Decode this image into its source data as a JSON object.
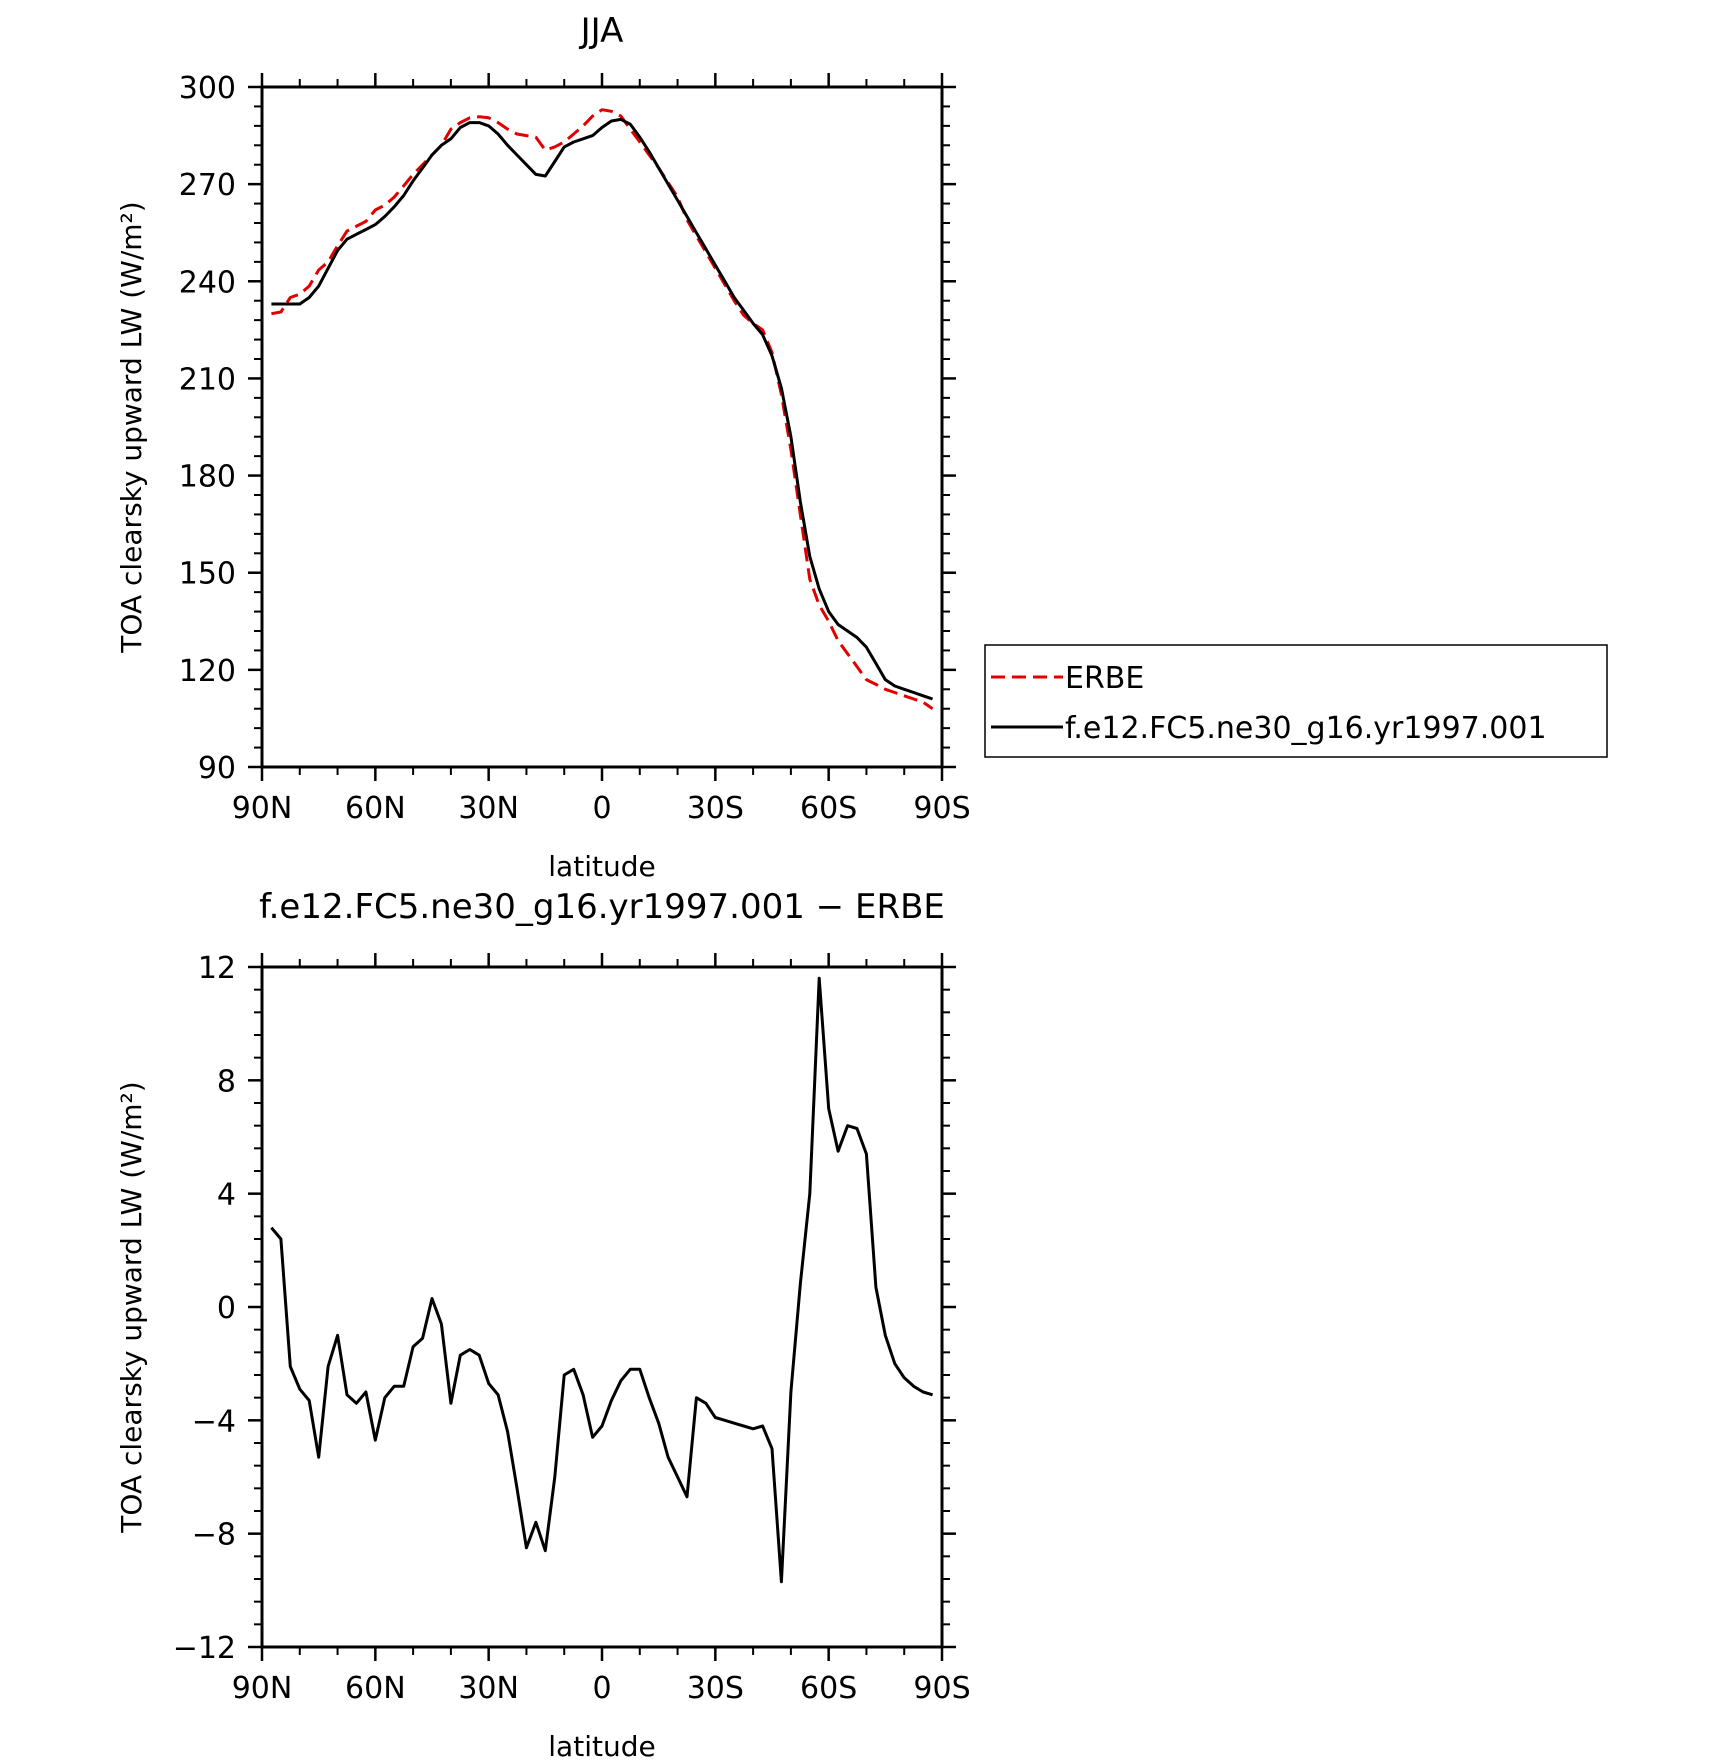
{
  "chart_data": [
    {
      "type": "line",
      "title": "JJA",
      "xlabel": "latitude",
      "ylabel": "TOA clearsky upward LW (W/m²)",
      "xlim": [
        90,
        -90
      ],
      "ylim": [
        90,
        300
      ],
      "x_ticks": [
        90,
        60,
        30,
        0,
        -30,
        -60,
        -90
      ],
      "x_tick_labels": [
        "90N",
        "60N",
        "30N",
        "0",
        "30S",
        "60S",
        "90S"
      ],
      "y_ticks": [
        90,
        120,
        150,
        180,
        210,
        240,
        270,
        300
      ],
      "y_tick_labels": [
        "90",
        "120",
        "150",
        "180",
        "210",
        "240",
        "270",
        "300"
      ],
      "grid": false,
      "legend_placement": "outside-right",
      "series": [
        {
          "name": "ERBE",
          "color": "#e00000",
          "dash": "dashed",
          "x": [
            87.5,
            85,
            82.5,
            80,
            77.5,
            75,
            72.5,
            70,
            67.5,
            65,
            62.5,
            60,
            57.5,
            55,
            52.5,
            50,
            47.5,
            45,
            42.5,
            40,
            37.5,
            35,
            32.5,
            30,
            27.5,
            25,
            22.5,
            20,
            17.5,
            15,
            12.5,
            10,
            7.5,
            5,
            2.5,
            0,
            -2.5,
            -5,
            -7.5,
            -10,
            -12.5,
            -15,
            -17.5,
            -20,
            -22.5,
            -25,
            -27.5,
            -30,
            -32.5,
            -35,
            -37.5,
            -40,
            -42.5,
            -45,
            -47.5,
            -50,
            -52.5,
            -55,
            -57.5,
            -60,
            -62.5,
            -65,
            -67.5,
            -70,
            -72.5,
            -75,
            -77.5,
            -80,
            -82.5,
            -85,
            -87.5
          ],
          "values": [
            230,
            230.5,
            235,
            236,
            238.5,
            243.5,
            246,
            251,
            255.5,
            257,
            258.5,
            262,
            263.5,
            266,
            269.5,
            273,
            276,
            279,
            282,
            287,
            289,
            290.5,
            290.8,
            290.5,
            289,
            287,
            285.5,
            285,
            284.5,
            280.5,
            281.5,
            283,
            285.5,
            288,
            291,
            293,
            292.5,
            291,
            287,
            283,
            279,
            275,
            270.5,
            266,
            259,
            254,
            249,
            244,
            239,
            234,
            229.5,
            227,
            225,
            218,
            205,
            188,
            168,
            148,
            140,
            135,
            129,
            125,
            121,
            117,
            115.5,
            114,
            113,
            112,
            111,
            110,
            108
          ]
        },
        {
          "name": "f.e12.FC5.ne30_g16.yr1997.001",
          "color": "#000000",
          "dash": "solid",
          "x": [
            87.5,
            85,
            82.5,
            80,
            77.5,
            75,
            72.5,
            70,
            67.5,
            65,
            62.5,
            60,
            57.5,
            55,
            52.5,
            50,
            47.5,
            45,
            42.5,
            40,
            37.5,
            35,
            32.5,
            30,
            27.5,
            25,
            22.5,
            20,
            17.5,
            15,
            12.5,
            10,
            7.5,
            5,
            2.5,
            0,
            -2.5,
            -5,
            -7.5,
            -10,
            -12.5,
            -15,
            -17.5,
            -20,
            -22.5,
            -25,
            -27.5,
            -30,
            -32.5,
            -35,
            -37.5,
            -40,
            -42.5,
            -45,
            -47.5,
            -50,
            -52.5,
            -55,
            -57.5,
            -60,
            -62.5,
            -65,
            -67.5,
            -70,
            -72.5,
            -75,
            -77.5,
            -80,
            -82.5,
            -85,
            -87.5
          ],
          "values": [
            233,
            233,
            233,
            233,
            235,
            238.5,
            244,
            249.5,
            253,
            254.5,
            256,
            257.5,
            260,
            263,
            266.5,
            271,
            275,
            279,
            282,
            284,
            287.5,
            289,
            289,
            288,
            285.5,
            282,
            279,
            276,
            273,
            272.5,
            277,
            281.5,
            283,
            284,
            285,
            287.5,
            289.5,
            290,
            288.5,
            284.5,
            280,
            275,
            270,
            265,
            260,
            255,
            250,
            245,
            240,
            235,
            231,
            227,
            223.5,
            217,
            207,
            192,
            172,
            155,
            145,
            138,
            134,
            132,
            130,
            127,
            122,
            117,
            115,
            114,
            113,
            112,
            111
          ]
        }
      ]
    },
    {
      "type": "line",
      "title": "f.e12.FC5.ne30_g16.yr1997.001 − ERBE",
      "xlabel": "latitude",
      "ylabel": "TOA clearsky upward LW (W/m²)",
      "xlim": [
        90,
        -90
      ],
      "ylim": [
        -12,
        12
      ],
      "x_ticks": [
        90,
        60,
        30,
        0,
        -30,
        -60,
        -90
      ],
      "x_tick_labels": [
        "90N",
        "60N",
        "30N",
        "0",
        "30S",
        "60S",
        "90S"
      ],
      "y_ticks": [
        -12,
        -8,
        -4,
        0,
        4,
        8,
        12
      ],
      "y_tick_labels": [
        "−12",
        "−8",
        "−4",
        "0",
        "4",
        "8",
        "12"
      ],
      "grid": false,
      "series": [
        {
          "color": "#000000",
          "dash": "solid",
          "x": [
            87.5,
            85,
            82.5,
            80,
            77.5,
            75,
            72.5,
            70,
            67.5,
            65,
            62.5,
            60,
            57.5,
            55,
            52.5,
            50,
            47.5,
            45,
            42.5,
            40,
            37.5,
            35,
            32.5,
            30,
            27.5,
            25,
            22.5,
            20,
            17.5,
            15,
            12.5,
            10,
            7.5,
            5,
            2.5,
            0,
            -2.5,
            -5,
            -7.5,
            -10,
            -12.5,
            -15,
            -17.5,
            -20,
            -22.5,
            -25,
            -27.5,
            -30,
            -32.5,
            -35,
            -37.5,
            -40,
            -42.5,
            -45,
            -47.5,
            -50,
            -52.5,
            -55,
            -57.5,
            -60,
            -62.5,
            -65,
            -67.5,
            -70,
            -72.5,
            -75,
            -77.5,
            -80,
            -82.5,
            -85,
            -87.5
          ],
          "values": [
            2.8,
            2.4,
            -2.1,
            -2.9,
            -3.3,
            -5.3,
            -2.1,
            -1.0,
            -3.1,
            -3.4,
            -3.0,
            -4.7,
            -3.2,
            -2.8,
            -2.8,
            -1.4,
            -1.1,
            0.3,
            -0.6,
            -3.4,
            -1.7,
            -1.5,
            -1.7,
            -2.7,
            -3.1,
            -4.4,
            -6.4,
            -8.5,
            -7.6,
            -8.6,
            -6.0,
            -2.4,
            -2.2,
            -3.1,
            -4.6,
            -4.2,
            -3.3,
            -2.6,
            -2.2,
            -2.2,
            -3.2,
            -4.1,
            -5.3,
            -6.0,
            -6.7,
            -3.2,
            -3.4,
            -3.9,
            -4.0,
            -4.1,
            -4.2,
            -4.3,
            -4.2,
            -5.0,
            -9.7,
            -3.0,
            0.8,
            4.0,
            11.6,
            7.0,
            5.5,
            6.4,
            6.3,
            5.4,
            0.7,
            -1.0,
            -2.0,
            -2.5,
            -2.8,
            -3.0,
            -3.1
          ]
        }
      ]
    }
  ]
}
